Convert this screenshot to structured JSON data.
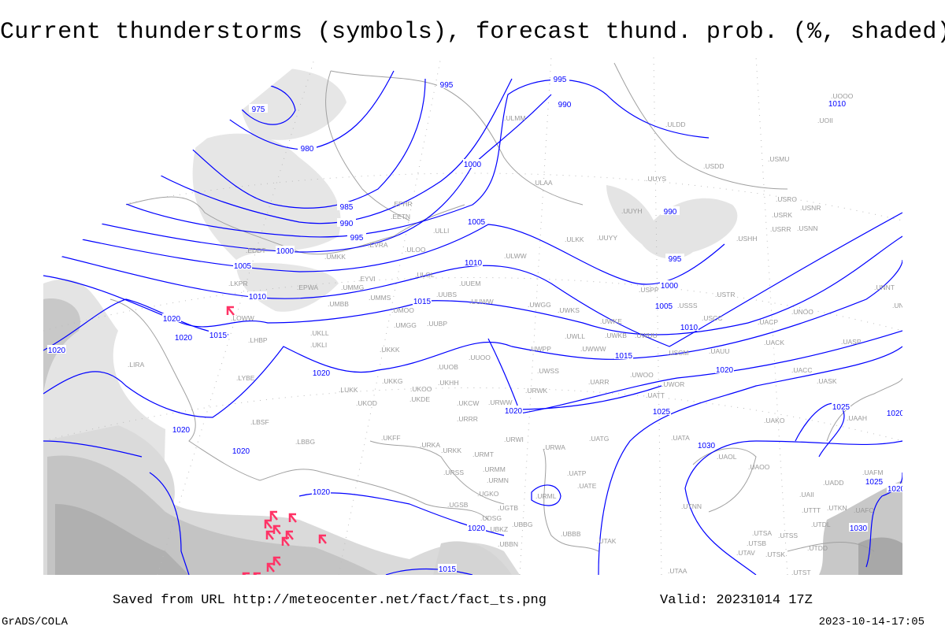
{
  "title": "Current thunderstorms (symbols), forecast thund. prob. (%, shaded)",
  "footer": {
    "saved_from": "Saved from URL http://meteocenter.net/fact/fact_ts.png",
    "valid": "Valid: 20231014 17Z",
    "software": "GrADS/COLA",
    "timestamp": "2023-10-14-17:05"
  },
  "colors": {
    "isobar": "#0000ff",
    "coastline": "#a0a0a0",
    "station_label": "#999999",
    "thunderstorm_symbol": "#ff3366",
    "probability_shading": [
      "#e4e4e4",
      "#d0d0d0",
      "#bcbcbc",
      "#a8a8a8"
    ]
  },
  "legend_symbols": {
    "thunderstorm": "thunderstorm-symbol"
  },
  "isobar_labels": [
    "975",
    "980",
    "985",
    "990",
    "995",
    "1000",
    "1005",
    "1010",
    "1015",
    "1020",
    "1020",
    "1020",
    "1020",
    "1020",
    "1020",
    "1020",
    "1020",
    "1015",
    "995",
    "995",
    "990",
    "1000",
    "1005",
    "1010",
    "1015",
    "990",
    "995",
    "1000",
    "1005",
    "1010",
    "1015",
    "1020",
    "1025",
    "1030",
    "1010",
    "1025",
    "1025",
    "1030",
    "1020",
    "1020",
    "1020"
  ],
  "stations": [
    "LIRA",
    "LYBE",
    "LBSF",
    "LBBG",
    "LHBP",
    "LOWW",
    "LKPR",
    "EDDT",
    "EPWA",
    "UMMG",
    "EYVI",
    "UMKK",
    "EVRA",
    "ULOO",
    "ULOL",
    "UUEM",
    "UMBB",
    "UMMS",
    "UMOO",
    "UUBS",
    "UUWW",
    "UMGG",
    "UUBP",
    "UKLL",
    "UKLI",
    "UKKK",
    "UUOO",
    "UUOB",
    "UKHH",
    "UKOO",
    "UKKG",
    "UKDE",
    "UKCW",
    "URRR",
    "LUKK",
    "UKOD",
    "UKFF",
    "URKA",
    "URKK",
    "URWI",
    "URMT",
    "URWA",
    "UATG",
    "URMM",
    "URSS",
    "URMN",
    "UATP",
    "UATE",
    "URML",
    "UGKO",
    "UGSB",
    "UGTB",
    "UDSG",
    "UBBG",
    "UBKZ",
    "UBBN",
    "UBBB",
    "UTAK",
    "UTAA",
    "UTNN",
    "UATA",
    "UAOL",
    "UAOO",
    "UTSA",
    "UTSB",
    "UTAV",
    "UTSK",
    "UTSS",
    "UTDD",
    "UTST",
    "UTDL",
    "UTTT",
    "UTKN",
    "UAFO",
    "UAII",
    "UADD",
    "UAFM",
    "ULMM",
    "ULDD",
    "UOOO",
    "UOII",
    "USMU",
    "USDD",
    "UUYS",
    "ULAA",
    "UUYH",
    "USRO",
    "USNR",
    "USRK",
    "USRR",
    "USNN",
    "USHH",
    "ULKK",
    "UUYY",
    "EFHR",
    "EETN",
    "ULLI",
    "ULWW",
    "USPP",
    "USTR",
    "USSS",
    "UWGG",
    "UWKS",
    "UWKE",
    "UWKB",
    "UWUU",
    "UWLL",
    "UWWW",
    "UWPP",
    "USCC",
    "USCM",
    "UAUU",
    "UACP",
    "UNOO",
    "UACK",
    "UASP",
    "UNNT",
    "UNBB",
    "UWSS",
    "UARR",
    "UWOO",
    "UWOR",
    "UATT",
    "UACC",
    "UASK",
    "URWW",
    "URWK",
    "UAKO",
    "UAAH"
  ]
}
